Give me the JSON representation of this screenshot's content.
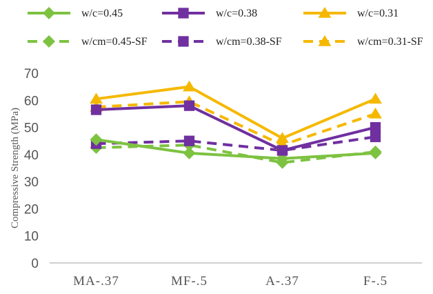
{
  "chart_data": {
    "type": "line",
    "title": "",
    "xlabel": "",
    "ylabel": "Compressive Strength (MPa)",
    "categories": [
      "MA-.37",
      "MF-.5",
      "A-.37",
      "F-.5"
    ],
    "yticks": [
      "0",
      "10",
      "20",
      "30",
      "40",
      "50",
      "60",
      "70"
    ],
    "ylim": [
      0,
      70
    ],
    "grid": false,
    "legend_position": "top",
    "series": [
      {
        "name": "w/c=0.45",
        "values": [
          45.5,
          40.5,
          38.5,
          40.5
        ],
        "color": "#7dc241",
        "dashed": false,
        "marker": "diamond"
      },
      {
        "name": "w/c=0.38",
        "values": [
          56.5,
          58.0,
          41.5,
          50.0
        ],
        "color": "#7030a0",
        "dashed": false,
        "marker": "square"
      },
      {
        "name": "w/c=0.31",
        "values": [
          60.5,
          65.0,
          46.0,
          60.5
        ],
        "color": "#f5b800",
        "dashed": false,
        "marker": "triangle"
      },
      {
        "name": "w/cm=0.45-SF",
        "values": [
          42.5,
          43.5,
          37.0,
          41.0
        ],
        "color": "#7dc241",
        "dashed": true,
        "marker": "diamond"
      },
      {
        "name": "w/cm=0.38-SF",
        "values": [
          44.0,
          45.0,
          41.5,
          46.5
        ],
        "color": "#7030a0",
        "dashed": true,
        "marker": "square"
      },
      {
        "name": "w/cm=0.31-SF",
        "values": [
          57.5,
          59.5,
          43.5,
          55.0
        ],
        "color": "#f5b800",
        "dashed": true,
        "marker": "triangle"
      }
    ]
  }
}
